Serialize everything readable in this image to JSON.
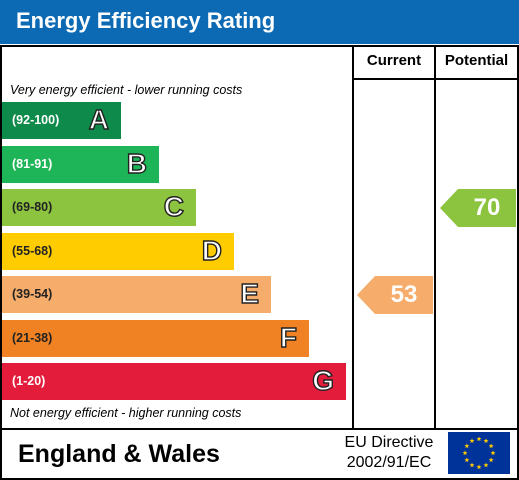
{
  "header": {
    "title": "Energy Efficiency Rating"
  },
  "columns": {
    "current": "Current",
    "potential": "Potential"
  },
  "notes": {
    "top": "Very energy efficient - lower running costs",
    "bottom": "Not energy efficient - higher running costs"
  },
  "colors": {
    "header": "#0c6ab4",
    "A": "#0e8a4a",
    "B": "#1db557",
    "C": "#8cc43f",
    "D": "#ffcc00",
    "E": "#f6ac6b",
    "F": "#f08223",
    "G": "#e31c3c"
  },
  "chart_data": {
    "type": "table",
    "bands": [
      {
        "letter": "A",
        "range": "(92-100)"
      },
      {
        "letter": "B",
        "range": "(81-91)"
      },
      {
        "letter": "C",
        "range": "(69-80)"
      },
      {
        "letter": "D",
        "range": "(55-68)"
      },
      {
        "letter": "E",
        "range": "(39-54)"
      },
      {
        "letter": "F",
        "range": "(21-38)"
      },
      {
        "letter": "G",
        "range": "(1-20)"
      }
    ],
    "current": {
      "value": 53,
      "band": "E",
      "color": "#f6ac6b"
    },
    "potential": {
      "value": 70,
      "band": "C",
      "color": "#8cc43f"
    }
  },
  "footer": {
    "region": "England & Wales",
    "directive_line1": "EU Directive",
    "directive_line2": "2002/91/EC"
  },
  "icons": {
    "flag": "eu-flag-icon"
  }
}
